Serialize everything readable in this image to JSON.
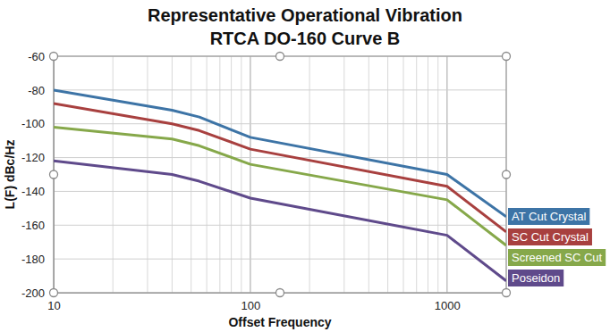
{
  "chart_data": {
    "type": "line",
    "title": [
      "Representative Operational Vibration",
      "RTCA DO-160 Curve B"
    ],
    "x_label": "Offset Frequency",
    "y_label": "L(F) dBc/Hz",
    "x": [
      10,
      40,
      55,
      100,
      1000,
      2000
    ],
    "series": [
      {
        "name": "AT Cut Crystal",
        "color": "#3d74a6",
        "values": [
          -80,
          -92,
          -96,
          -108,
          -130,
          -155
        ]
      },
      {
        "name": "SC Cut Crystal",
        "color": "#a8403f",
        "values": [
          -88,
          -100,
          -104,
          -115,
          -137,
          -164
        ]
      },
      {
        "name": "Screened SC Cut",
        "color": "#86a84a",
        "values": [
          -102,
          -109,
          -113,
          -124,
          -145,
          -172
        ]
      },
      {
        "name": "Poseidon",
        "color": "#5f4a8b",
        "values": [
          -122,
          -130,
          -134,
          -144,
          -166,
          -193
        ]
      }
    ],
    "xlim": [
      10,
      2000
    ],
    "xticks": [
      10,
      100,
      1000
    ],
    "ylim": [
      -200,
      -60
    ],
    "yticks": [
      -60,
      -80,
      -100,
      -120,
      -140,
      -160,
      -180,
      -200
    ],
    "log": "x",
    "grid": true,
    "legend": "right"
  }
}
